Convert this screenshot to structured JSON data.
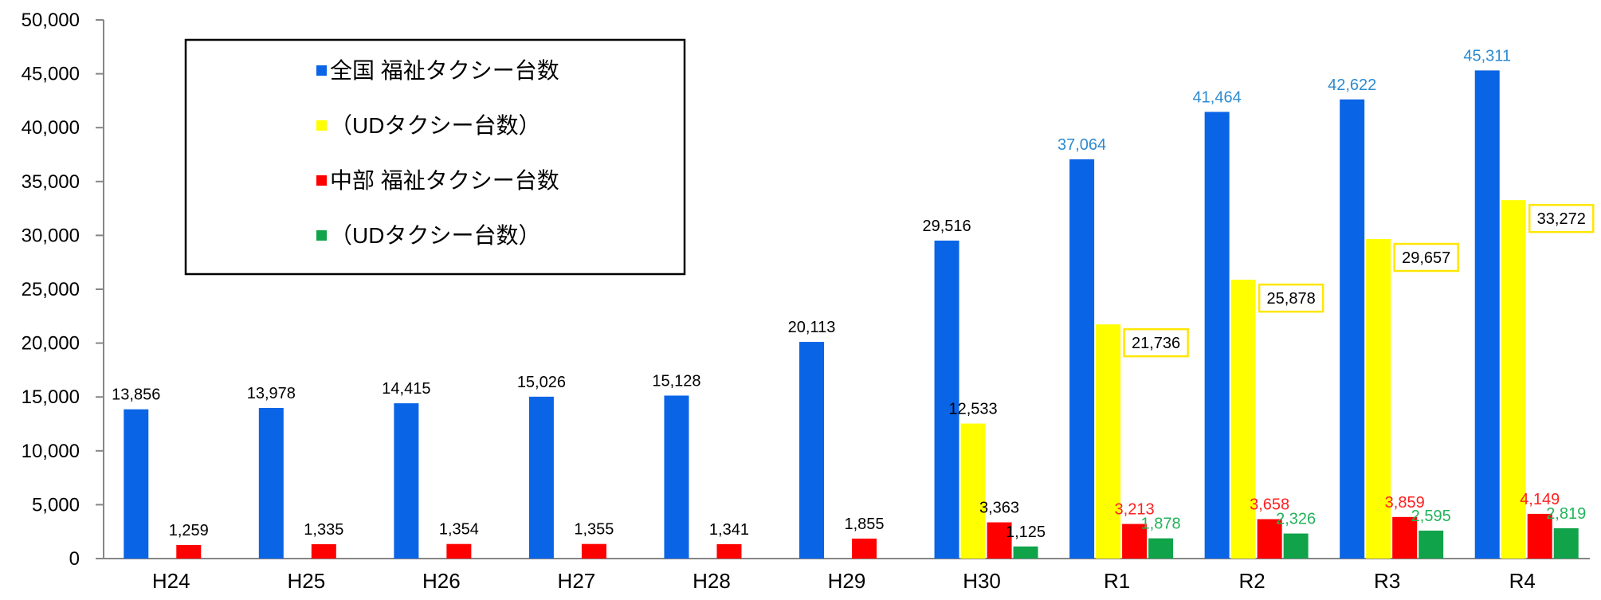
{
  "chart_data": {
    "type": "bar",
    "categories": [
      "H24",
      "H25",
      "H26",
      "H27",
      "H28",
      "H29",
      "H30",
      "R1",
      "R2",
      "R3",
      "R4"
    ],
    "ylim": [
      0,
      50000
    ],
    "yticks": [
      "0",
      "5,000",
      "10,000",
      "15,000",
      "20,000",
      "25,000",
      "30,000",
      "35,000",
      "40,000",
      "45,000",
      "50,000"
    ],
    "ytick_values": [
      0,
      5000,
      10000,
      15000,
      20000,
      25000,
      30000,
      35000,
      40000,
      45000,
      50000
    ],
    "grid": false,
    "legend_position": "top-left",
    "series": [
      {
        "name": "全国 福祉タクシー台数",
        "color": "#0a64e6",
        "values": [
          13856,
          13978,
          14415,
          15026,
          15128,
          20113,
          29516,
          37064,
          41464,
          42622,
          45311
        ],
        "labels": [
          "13,856",
          "13,978",
          "14,415",
          "15,026",
          "15,128",
          "20,113",
          "29,516",
          "37,064",
          "41,464",
          "42,622",
          "45,311"
        ],
        "label_colors": [
          "#000000",
          "#000000",
          "#000000",
          "#000000",
          "#000000",
          "#000000",
          "#000000",
          "#2e8bd0",
          "#2e8bd0",
          "#2e8bd0",
          "#2e8bd0"
        ]
      },
      {
        "name": "（UDタクシー台数）",
        "color": "#ffff00",
        "values": [
          null,
          null,
          null,
          null,
          null,
          null,
          12533,
          21736,
          25878,
          29657,
          33272
        ],
        "labels": [
          "",
          "",
          "",
          "",
          "",
          "",
          "12,533",
          "21,736",
          "25,878",
          "29,657",
          "33,272"
        ],
        "label_colors": [
          "#000000",
          "#000000",
          "#000000",
          "#000000",
          "#000000",
          "#000000",
          "#000000",
          "#000000",
          "#000000",
          "#000000",
          "#000000"
        ],
        "boxed_label": [
          false,
          false,
          false,
          false,
          false,
          false,
          false,
          true,
          true,
          true,
          true
        ],
        "box_color": "#ffe600"
      },
      {
        "name": "中部 福祉タクシー台数",
        "color": "#ff0000",
        "values": [
          1259,
          1335,
          1354,
          1355,
          1341,
          1855,
          3363,
          3213,
          3658,
          3859,
          4149
        ],
        "labels": [
          "1,259",
          "1,335",
          "1,354",
          "1,355",
          "1,341",
          "1,855",
          "3,363",
          "3,213",
          "3,658",
          "3,859",
          "4,149"
        ],
        "label_colors": [
          "#000000",
          "#000000",
          "#000000",
          "#000000",
          "#000000",
          "#000000",
          "#000000",
          "#ff2020",
          "#ff2020",
          "#ff2020",
          "#ff2020"
        ]
      },
      {
        "name": "（UDタクシー台数）",
        "color": "#11a34a",
        "values": [
          null,
          null,
          null,
          null,
          null,
          null,
          1125,
          1878,
          2326,
          2595,
          2819
        ],
        "labels": [
          "",
          "",
          "",
          "",
          "",
          "",
          "1,125",
          "1,878",
          "2,326",
          "2,595",
          "2,819"
        ],
        "label_colors": [
          "#000000",
          "#000000",
          "#000000",
          "#000000",
          "#000000",
          "#000000",
          "#000000",
          "#22b35a",
          "#22b35a",
          "#22b35a",
          "#22b35a"
        ]
      }
    ]
  }
}
